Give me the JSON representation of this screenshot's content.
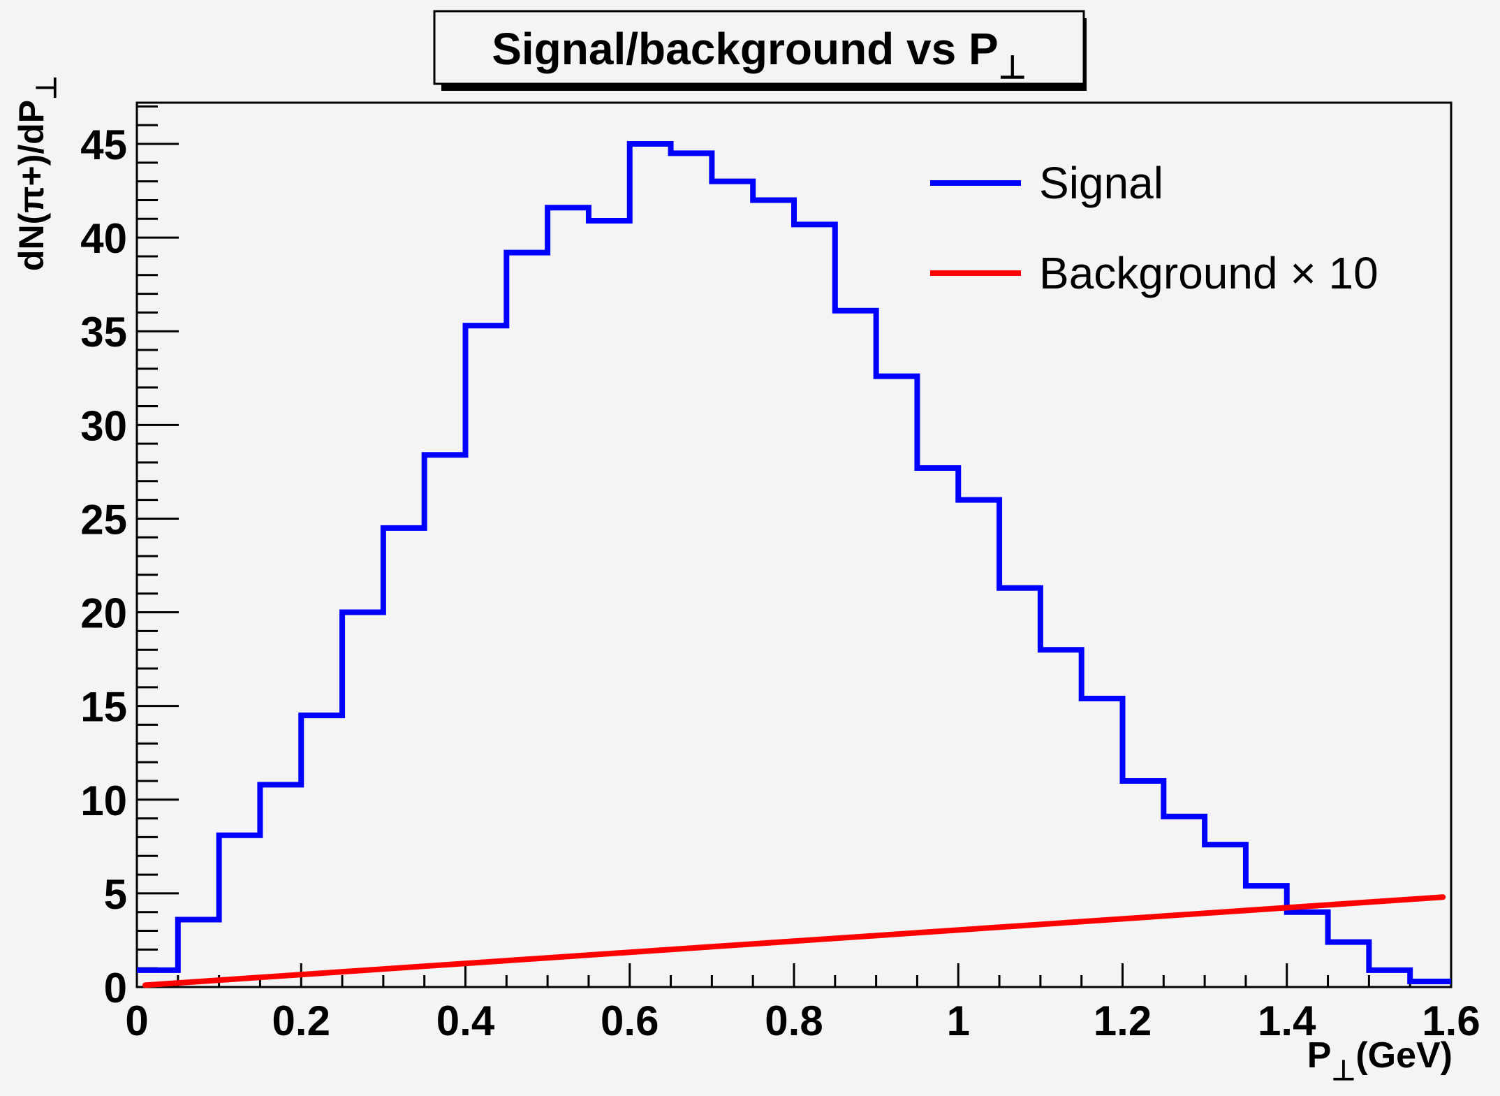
{
  "chart_data": {
    "type": "line",
    "title": "Signal/background vs P",
    "title_subscript": "⊥",
    "xlabel": "P",
    "xlabel_subscript": "⊥",
    "xlabel_suffix": "(GeV)",
    "ylabel": "dN(π+)/dP",
    "ylabel_subscript": "⊥",
    "xlim": [
      0,
      1.6
    ],
    "ylim": [
      0,
      47.2
    ],
    "x_ticks": [
      "0",
      "0.2",
      "0.4",
      "0.6",
      "0.8",
      "1",
      "1.2",
      "1.4",
      "1.6"
    ],
    "y_ticks": [
      "0",
      "5",
      "10",
      "15",
      "20",
      "25",
      "30",
      "35",
      "40",
      "45"
    ],
    "grid": false,
    "legend_position": "top-right",
    "legend": [
      "Signal",
      "Background × 10"
    ],
    "series": [
      {
        "name": "Signal",
        "style": "step-histogram",
        "color": "#0000ff",
        "bin_width": 0.05,
        "bin_edges_start": 0,
        "values": [
          0.9,
          3.6,
          8.1,
          10.8,
          14.5,
          20.0,
          24.5,
          28.4,
          35.3,
          39.2,
          41.6,
          40.9,
          45.0,
          44.5,
          43.0,
          42.0,
          40.7,
          36.1,
          32.6,
          27.7,
          26.0,
          21.3,
          18.0,
          15.4,
          11.0,
          9.1,
          7.6,
          5.4,
          4.0,
          2.4,
          0.9,
          0.3
        ]
      },
      {
        "name": "Background × 10",
        "style": "line",
        "color": "#ff0000",
        "x": [
          0.0,
          0.2,
          0.4,
          0.6,
          0.8,
          1.0,
          1.2,
          1.4,
          1.59
        ],
        "values": [
          0.1,
          0.6,
          1.2,
          1.8,
          2.4,
          3.0,
          3.6,
          4.2,
          4.8
        ]
      }
    ]
  }
}
